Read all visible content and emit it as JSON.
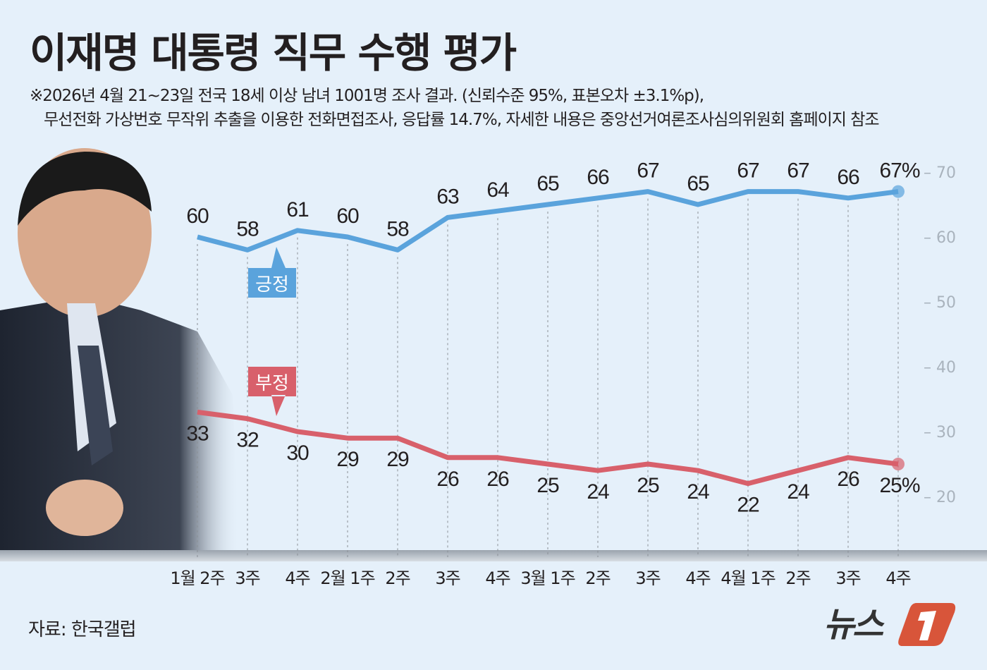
{
  "title": "이재명 대통령 직무 수행 평가",
  "subtitle_line1": "※2026년 4월 21~23일 전국 18세 이상 남녀 1001명 조사 결과. (신뢰수준 95%, 표본오차 ±3.1%p),",
  "subtitle_line2": "무선전화 가상번호 무작위 추출을 이용한 전화면접조사, 응답률 14.7%, 자세한 내용은 중앙선거여론조사심의위원회 홈페이지 참조",
  "source": "자료: 한국갤럽",
  "logo_text": "뉴스1",
  "chart_data": {
    "type": "line",
    "categories": [
      "1월 2주",
      "3주",
      "4주",
      "2월 1주",
      "2주",
      "3주",
      "4주",
      "3월 1주",
      "2주",
      "3주",
      "4주",
      "4월 1주",
      "2주",
      "3주",
      "4주"
    ],
    "series": [
      {
        "name": "긍정",
        "color": "#5aa3dc",
        "values": [
          60,
          58,
          61,
          60,
          58,
          63,
          64,
          65,
          66,
          67,
          65,
          67,
          67,
          66,
          67
        ]
      },
      {
        "name": "부정",
        "color": "#d8606b",
        "values": [
          33,
          32,
          30,
          29,
          29,
          26,
          26,
          25,
          24,
          25,
          24,
          22,
          24,
          26,
          25
        ]
      }
    ],
    "last_value_suffix": "%",
    "yticks": [
      20,
      30,
      40,
      50,
      60,
      70
    ],
    "ylim": [
      20,
      70
    ],
    "grid": "vertical dashed",
    "axis_position": "right"
  }
}
